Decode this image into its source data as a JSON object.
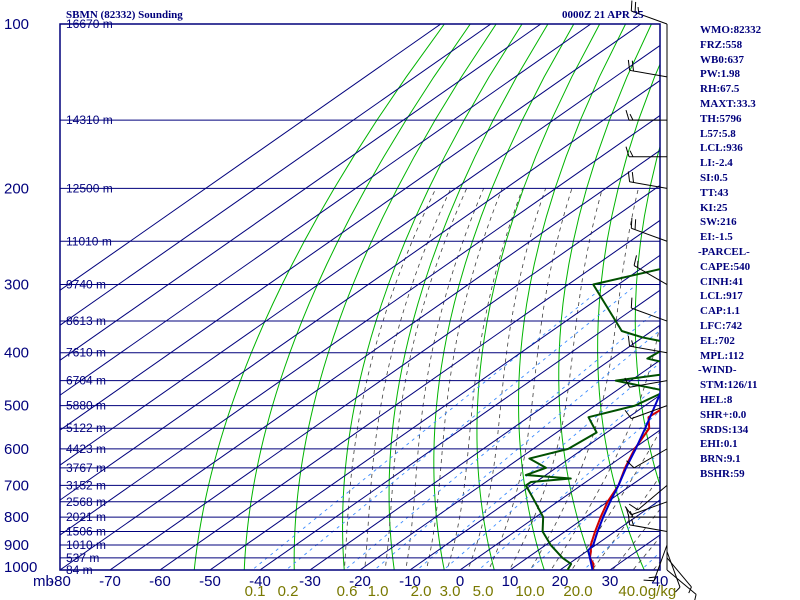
{
  "header": {
    "station": "SBMN (82332) Sounding",
    "time": "0000Z 21 APR 25"
  },
  "colors": {
    "background": "#ffffff",
    "grid": "#00007c",
    "dry_adiabat": "#00b400",
    "moist_adiabat": "#404040",
    "mixing_ratio": "#3c8cff",
    "temperature": "#d00000",
    "dewpoint": "#005000",
    "parcel": "#0000c8",
    "axis_text": "#00007c",
    "mixing_label": "#787800",
    "wind": "#000000"
  },
  "chart_data": {
    "type": "line",
    "title": "SBMN (82332) Sounding",
    "valid_time": "0000Z 21 APR 25",
    "x_axis": {
      "unit_label": "mb",
      "ticks": [
        -80,
        -70,
        -60,
        -50,
        -40,
        -30,
        -20,
        -10,
        0,
        10,
        20,
        30,
        40
      ],
      "labels": [
        "-80",
        "-70",
        "-60",
        "-50",
        "-40",
        "-30",
        "-20",
        "-10",
        "0",
        "10",
        "20",
        "30",
        "40"
      ]
    },
    "y_axis": {
      "scale": "log",
      "pressure_ticks": [
        100,
        200,
        300,
        400,
        500,
        600,
        700,
        800,
        900,
        1000
      ],
      "labels": [
        "100",
        "200",
        "300",
        "400",
        "500",
        "600",
        "700",
        "800",
        "900",
        "1000"
      ]
    },
    "height_labels": [
      {
        "p": 100,
        "text": "16670 m"
      },
      {
        "p": 150,
        "text": "14310 m"
      },
      {
        "p": 200,
        "text": "12500 m"
      },
      {
        "p": 250,
        "text": "11010 m"
      },
      {
        "p": 300,
        "text": "9740 m"
      },
      {
        "p": 350,
        "text": "8613 m"
      },
      {
        "p": 400,
        "text": "7610 m"
      },
      {
        "p": 450,
        "text": "6704 m"
      },
      {
        "p": 500,
        "text": "5880 m"
      },
      {
        "p": 550,
        "text": "5122 m"
      },
      {
        "p": 600,
        "text": "4423 m"
      },
      {
        "p": 650,
        "text": "3767 m"
      },
      {
        "p": 700,
        "text": "3152 m"
      },
      {
        "p": 750,
        "text": "2568 m"
      },
      {
        "p": 800,
        "text": "2021 m"
      },
      {
        "p": 850,
        "text": "1506 m"
      },
      {
        "p": 900,
        "text": "1010 m"
      },
      {
        "p": 950,
        "text": "537 m"
      },
      {
        "p": 1000,
        "text": "84 m"
      }
    ],
    "mixing_ratio_labels": [
      "0.1",
      "0.2",
      "0.6",
      "1.0",
      "2.0",
      "3.0",
      "5.0",
      "10.0",
      "20.0",
      "40.0",
      "g/kg"
    ],
    "series": [
      {
        "kind": "temperature",
        "points": [
          [
            1010,
            28
          ],
          [
            1000,
            26.5
          ],
          [
            975,
            25
          ],
          [
            950,
            22.5
          ],
          [
            925,
            20.9
          ],
          [
            900,
            19
          ],
          [
            850,
            16
          ],
          [
            800,
            13
          ],
          [
            750,
            10
          ],
          [
            700,
            7.5
          ],
          [
            650,
            3.8
          ],
          [
            600,
            0.3
          ],
          [
            550,
            -2.7
          ],
          [
            525,
            -6
          ],
          [
            500,
            -5.5
          ],
          [
            475,
            -7.5
          ],
          [
            450,
            -9
          ],
          [
            425,
            -10.8
          ],
          [
            400,
            -12.5
          ],
          [
            375,
            -15.2
          ],
          [
            350,
            -19
          ],
          [
            325,
            -22
          ],
          [
            300,
            -25.6
          ],
          [
            275,
            -29.5
          ],
          [
            250,
            -34
          ],
          [
            225,
            -38.8
          ],
          [
            200,
            -44
          ],
          [
            175,
            -50
          ],
          [
            150,
            -57.5
          ],
          [
            135,
            -62.5
          ],
          [
            125,
            -66.5
          ],
          [
            115,
            -71
          ],
          [
            100,
            -80
          ]
        ]
      },
      {
        "kind": "dewpoint",
        "points": [
          [
            1010,
            22
          ],
          [
            1000,
            21.5
          ],
          [
            975,
            20.5
          ],
          [
            950,
            17
          ],
          [
            900,
            11
          ],
          [
            850,
            5.5
          ],
          [
            800,
            1.5
          ],
          [
            750,
            -4.5
          ],
          [
            700,
            -11
          ],
          [
            690,
            -11
          ],
          [
            680,
            -4
          ],
          [
            670,
            -14
          ],
          [
            650,
            -12
          ],
          [
            625,
            -18
          ],
          [
            600,
            -13
          ],
          [
            560,
            -12
          ],
          [
            525,
            -18
          ],
          [
            500,
            -12
          ],
          [
            470,
            -10
          ],
          [
            450,
            -23
          ],
          [
            430,
            -10
          ],
          [
            410,
            -23
          ],
          [
            385,
            -22
          ],
          [
            375,
            -30
          ],
          [
            365,
            -36
          ],
          [
            300,
            -55
          ],
          [
            275,
            -43
          ],
          [
            265,
            -48
          ],
          [
            250,
            -52
          ],
          [
            240,
            -52
          ],
          [
            225,
            -52
          ],
          [
            210,
            -59
          ],
          [
            200,
            -56
          ],
          [
            190,
            -62
          ],
          [
            155,
            -67
          ],
          [
            130,
            -76.5
          ],
          [
            115,
            -79
          ]
        ]
      },
      {
        "kind": "parcel",
        "points": [
          [
            1000,
            26.5
          ],
          [
            950,
            22.5
          ],
          [
            920,
            20
          ],
          [
            900,
            19.5
          ],
          [
            850,
            16.5
          ],
          [
            800,
            13.5
          ],
          [
            750,
            10.5
          ],
          [
            700,
            7.5
          ],
          [
            650,
            4
          ],
          [
            600,
            0.5
          ],
          [
            550,
            -3.5
          ],
          [
            500,
            -8
          ],
          [
            450,
            -13
          ],
          [
            400,
            -18.5
          ],
          [
            350,
            -25
          ],
          [
            300,
            -32
          ],
          [
            250,
            -40
          ],
          [
            200,
            -50
          ],
          [
            150,
            -62
          ],
          [
            120,
            -71
          ],
          [
            100,
            -79
          ]
        ]
      }
    ],
    "wind_barbs": [
      {
        "p": 100,
        "dir": 290,
        "spd": 25
      },
      {
        "p": 125,
        "dir": 280,
        "spd": 20
      },
      {
        "p": 150,
        "dir": 270,
        "spd": 15
      },
      {
        "p": 175,
        "dir": 270,
        "spd": 15
      },
      {
        "p": 200,
        "dir": 280,
        "spd": 20
      },
      {
        "p": 250,
        "dir": 290,
        "spd": 20
      },
      {
        "p": 300,
        "dir": 300,
        "spd": 15
      },
      {
        "p": 350,
        "dir": 290,
        "spd": 10
      },
      {
        "p": 400,
        "dir": 280,
        "spd": 15
      },
      {
        "p": 450,
        "dir": 260,
        "spd": 10
      },
      {
        "p": 500,
        "dir": 250,
        "spd": 10
      },
      {
        "p": 600,
        "dir": 240,
        "spd": 10
      },
      {
        "p": 700,
        "dir": 230,
        "spd": 10
      },
      {
        "p": 750,
        "dir": 250,
        "spd": 10
      },
      {
        "p": 800,
        "dir": 270,
        "spd": 15
      },
      {
        "p": 850,
        "dir": 280,
        "spd": 15
      },
      {
        "p": 900,
        "dir": 200,
        "spd": 15
      },
      {
        "p": 925,
        "dir": 160,
        "spd": 5
      },
      {
        "p": 950,
        "dir": 140,
        "spd": 5
      },
      {
        "p": 1000,
        "dir": 130,
        "spd": 5
      }
    ]
  },
  "indices": [
    "WMO:82332",
    "FRZ:558",
    "WB0:637",
    "PW:1.98",
    "RH:67.5",
    "MAXT:33.3",
    "TH:5796",
    "L57:5.8",
    "LCL:936",
    "LI:-2.4",
    "SI:0.5",
    "TT:43",
    "KI:25",
    "SW:216",
    "EI:-1.5",
    "-PARCEL-",
    "CAPE:540",
    "CINH:41",
    "LCL:917",
    "CAP:1.1",
    "LFC:742",
    "EL:702",
    "MPL:112",
    "-WIND-",
    "STM:126/11",
    "HEL:8",
    "SHR+:0.0",
    "SRDS:134",
    "EHI:0.1",
    "BRN:9.1",
    "BSHR:59"
  ]
}
